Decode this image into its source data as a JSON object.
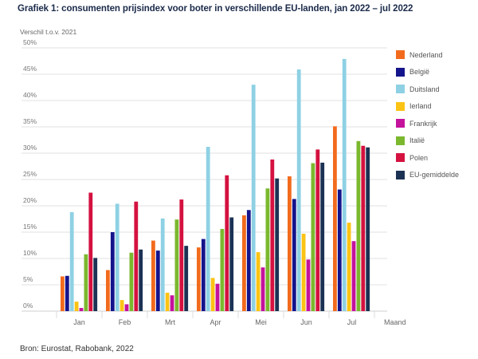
{
  "chart_data": {
    "type": "bar",
    "title": "Grafiek 1: consumenten prijsindex voor boter in verschillende EU-landen, jan 2022 – jul 2022",
    "ylabel": "Verschil t.o.v. 2021",
    "xlabel": "Maand",
    "source": "Bron: Eurostat, Rabobank, 2022",
    "categories": [
      "Jan",
      "Feb",
      "Mrt",
      "Apr",
      "Mei",
      "Jun",
      "Jul"
    ],
    "ylim": [
      0,
      50
    ],
    "yticks": [
      0,
      5,
      10,
      15,
      20,
      25,
      30,
      35,
      40,
      45,
      50
    ],
    "ytick_labels": [
      "0%",
      "5%",
      "10%",
      "15%",
      "20%",
      "25%",
      "30%",
      "35%",
      "40%",
      "45%",
      "50%"
    ],
    "grid": true,
    "legend_position": "right",
    "series": [
      {
        "name": "Nederland",
        "color": "#F26B1D",
        "values": [
          6.6,
          7.8,
          13.4,
          12.1,
          18.2,
          25.6,
          35.1
        ]
      },
      {
        "name": "België",
        "color": "#14148C",
        "values": [
          6.7,
          15.0,
          11.5,
          13.7,
          19.2,
          21.3,
          23.1
        ]
      },
      {
        "name": "Duitsland",
        "color": "#8ED1E4",
        "values": [
          18.8,
          20.4,
          17.6,
          31.2,
          43.0,
          45.9,
          47.9
        ]
      },
      {
        "name": "Ierland",
        "color": "#FBC314",
        "values": [
          1.8,
          2.1,
          3.5,
          6.3,
          11.2,
          14.7,
          16.8
        ]
      },
      {
        "name": "Frankrijk",
        "color": "#C4129C",
        "values": [
          0.6,
          1.3,
          3.0,
          5.2,
          8.3,
          9.8,
          13.3
        ]
      },
      {
        "name": "Italië",
        "color": "#7BB82E",
        "values": [
          10.8,
          11.1,
          17.4,
          15.6,
          23.3,
          28.1,
          32.3
        ]
      },
      {
        "name": "Polen",
        "color": "#D4113F",
        "values": [
          22.5,
          20.8,
          21.2,
          25.8,
          28.8,
          30.7,
          31.4
        ]
      },
      {
        "name": "EU-gemiddelde",
        "color": "#1B3254",
        "values": [
          10.1,
          11.7,
          12.4,
          17.8,
          25.2,
          28.2,
          31.1
        ]
      }
    ]
  }
}
